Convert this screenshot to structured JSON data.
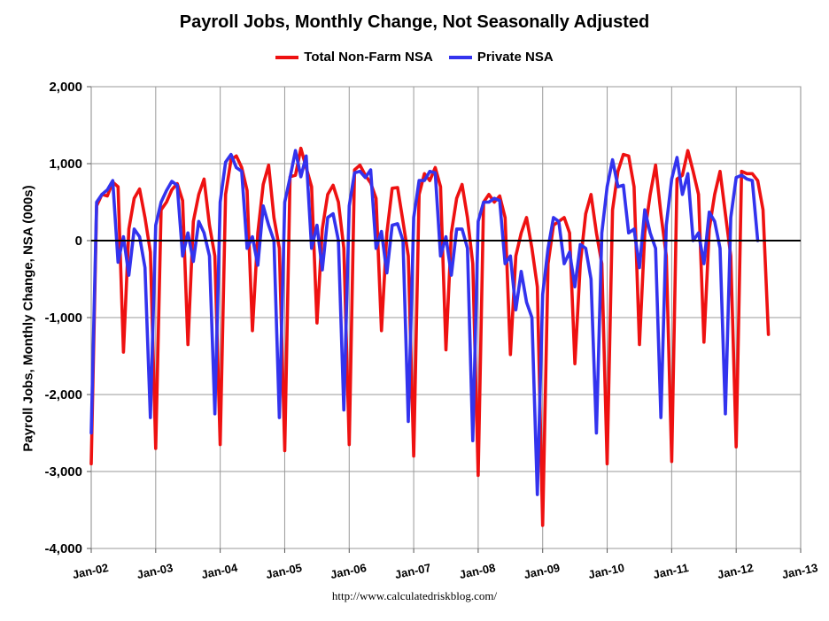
{
  "chart_data": {
    "type": "line",
    "title": "Payroll Jobs, Monthly Change, Not Seasonally Adjusted",
    "ylabel": "Payroll Jobs, Monthly Change, NSA (000s)",
    "xlabel": "",
    "ylim": [
      -4000,
      2000
    ],
    "yticks": [
      -4000,
      -3000,
      -2000,
      -1000,
      0,
      1000,
      2000
    ],
    "ytick_labels": [
      "-4,000",
      "-3,000",
      "-2,000",
      "-1,000",
      "0",
      "1,000",
      "2,000"
    ],
    "xlim_months": [
      "2002-01",
      "2013-01"
    ],
    "xticks": [
      "Jan-02",
      "Jan-03",
      "Jan-04",
      "Jan-05",
      "Jan-06",
      "Jan-07",
      "Jan-08",
      "Jan-09",
      "Jan-10",
      "Jan-11",
      "Jan-12",
      "Jan-13"
    ],
    "x_start": "2002-01",
    "grid": true,
    "legend_position": "top-center",
    "series": [
      {
        "name": "Total Non-Farm NSA",
        "color": "#ee1111",
        "values": [
          -2900,
          450,
          600,
          580,
          760,
          700,
          -1450,
          150,
          550,
          670,
          300,
          -150,
          -2700,
          400,
          500,
          660,
          740,
          520,
          -1350,
          250,
          600,
          800,
          200,
          -200,
          -2650,
          600,
          1050,
          1100,
          950,
          650,
          -1170,
          100,
          730,
          980,
          300,
          -100,
          -2730,
          830,
          850,
          1200,
          950,
          700,
          -1070,
          150,
          600,
          720,
          500,
          -100,
          -2650,
          920,
          980,
          850,
          750,
          550,
          -1170,
          100,
          680,
          690,
          250,
          -200,
          -2800,
          600,
          870,
          780,
          950,
          700,
          -1420,
          100,
          550,
          730,
          300,
          -300,
          -3050,
          500,
          600,
          500,
          580,
          300,
          -1480,
          -200,
          100,
          300,
          -100,
          -600,
          -3700,
          -300,
          200,
          250,
          300,
          100,
          -1600,
          -300,
          350,
          600,
          100,
          -300,
          -2900,
          400,
          900,
          1120,
          1100,
          700,
          -1350,
          100,
          600,
          980,
          350,
          -200,
          -2870,
          800,
          850,
          1170,
          900,
          600,
          -1320,
          150,
          600,
          900,
          350,
          -200,
          -2680,
          900,
          870,
          870,
          780,
          400,
          -1220
        ]
      },
      {
        "name": "Private NSA",
        "color": "#3333ee",
        "values": [
          -2500,
          500,
          600,
          660,
          780,
          -280,
          50,
          -450,
          150,
          50,
          -350,
          -2300,
          200,
          500,
          650,
          770,
          720,
          -200,
          100,
          -270,
          250,
          100,
          -200,
          -2250,
          500,
          1020,
          1120,
          950,
          900,
          -100,
          50,
          -320,
          450,
          200,
          0,
          -2300,
          500,
          820,
          1170,
          830,
          1100,
          -100,
          200,
          -380,
          300,
          350,
          0,
          -2200,
          450,
          880,
          900,
          820,
          920,
          -100,
          120,
          -420,
          200,
          220,
          0,
          -2350,
          300,
          780,
          780,
          900,
          880,
          -200,
          50,
          -450,
          150,
          150,
          -100,
          -2600,
          250,
          500,
          500,
          550,
          520,
          -300,
          -200,
          -900,
          -400,
          -800,
          -1000,
          -3300,
          -700,
          -100,
          300,
          250,
          -300,
          -150,
          -600,
          -50,
          -100,
          -500,
          -2500,
          100,
          700,
          1050,
          700,
          720,
          100,
          150,
          -350,
          400,
          100,
          -100,
          -2300,
          200,
          800,
          1080,
          600,
          870,
          0,
          100,
          -300,
          370,
          250,
          -100,
          -2250,
          300,
          820,
          850,
          800,
          780,
          0
        ]
      }
    ]
  },
  "source_note": "http://www.calculatedriskblog.com/"
}
